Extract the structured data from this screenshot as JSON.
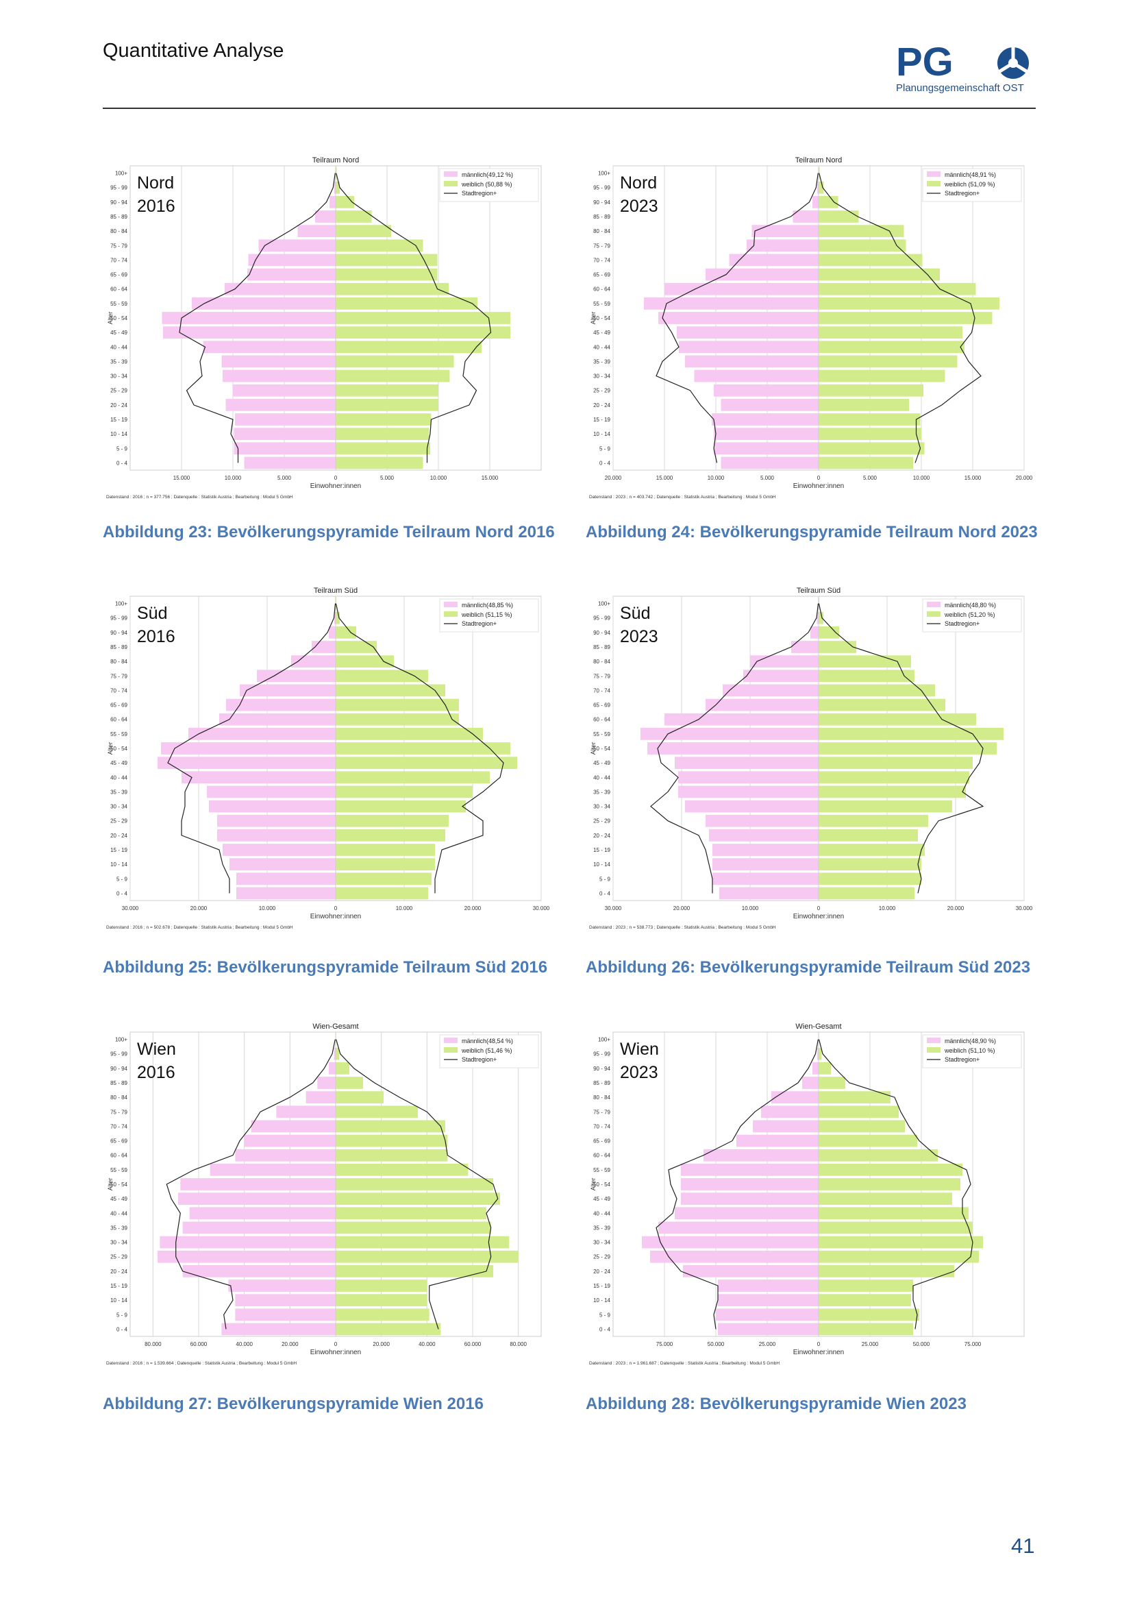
{
  "header": {
    "title": "Quantitative Analyse",
    "logo_text": "PG",
    "logo_subtitle": "Planungsgemeinschaft OST"
  },
  "page_number": "41",
  "shared": {
    "age_groups": [
      "0 - 4",
      "5 - 9",
      "10 - 14",
      "15 - 19",
      "20 - 24",
      "25 - 29",
      "30 - 34",
      "35 - 39",
      "40 - 44",
      "45 - 49",
      "50 - 54",
      "55 - 59",
      "60 - 64",
      "65 - 69",
      "70 - 74",
      "75 - 79",
      "80 - 84",
      "85 - 89",
      "90 - 94",
      "95 - 99",
      "100+"
    ],
    "ylabel": "Alter",
    "xlabel": "Einwohner:innen",
    "colors": {
      "male": "#f7c8f2",
      "female": "#d2ec8c",
      "line": "#222222"
    }
  },
  "chart_data": [
    {
      "type": "bar",
      "id": "nord-2016",
      "title": "Teilraum Nord",
      "overlay": [
        "Nord",
        "2016"
      ],
      "legend": [
        "männlich(49,12 %)",
        "weiblich (50,88 %)",
        "Stadtregion+"
      ],
      "male": [
        8900,
        9900,
        9900,
        9800,
        10700,
        10000,
        11000,
        11100,
        12900,
        16800,
        16900,
        14000,
        10800,
        8600,
        8500,
        7500,
        3700,
        2000,
        600,
        150,
        40
      ],
      "female": [
        8500,
        9200,
        9100,
        9300,
        10000,
        10000,
        11100,
        11500,
        14200,
        17000,
        17000,
        13800,
        11000,
        9900,
        9900,
        8500,
        5400,
        3500,
        1800,
        400,
        100
      ],
      "line_male": [
        9500,
        9500,
        10200,
        10000,
        13800,
        14500,
        13000,
        13200,
        12700,
        15200,
        15000,
        12800,
        9800,
        8400,
        7800,
        6900,
        4500,
        2300,
        900,
        250,
        50
      ],
      "line_female": [
        8900,
        8900,
        9200,
        9300,
        13000,
        13700,
        12400,
        12600,
        13700,
        15100,
        14900,
        13300,
        9900,
        9300,
        8600,
        7800,
        5600,
        3600,
        1600,
        400,
        50
      ],
      "xticks": [
        -15000,
        -10000,
        -5000,
        0,
        5000,
        10000,
        15000
      ],
      "xtick_labels": [
        "15.000",
        "10.000",
        "5.000",
        "0",
        "5.000",
        "10.000",
        "15.000"
      ],
      "xlim": [
        -20000,
        20000
      ],
      "footnote": "Datenstand : 2016 ; n = 377.756 ; Datenquelle : Statistik Austria ; Bearbeitung : Modul 5 GmbH",
      "caption": "Abbildung 23: Bevölkerungspyramide Teilraum Nord 2016"
    },
    {
      "type": "bar",
      "id": "nord-2023",
      "title": "Teilraum Nord",
      "overlay": [
        "Nord",
        "2023"
      ],
      "legend": [
        "männlich(48,91 %)",
        "weiblich (51,09 %)",
        "Stadtregion+"
      ],
      "male": [
        9500,
        10200,
        10200,
        10400,
        9500,
        10200,
        12100,
        13000,
        13600,
        13800,
        15600,
        17000,
        15000,
        11000,
        8700,
        7000,
        6500,
        2500,
        600,
        150,
        40
      ],
      "female": [
        9200,
        10300,
        10000,
        9900,
        8800,
        10200,
        12300,
        13500,
        14200,
        14000,
        16900,
        17600,
        15300,
        11800,
        10100,
        8500,
        8300,
        3900,
        1900,
        500,
        100
      ],
      "line_male": [
        9900,
        10200,
        10000,
        10200,
        11500,
        12500,
        15800,
        15200,
        13600,
        14300,
        15200,
        14800,
        12000,
        9000,
        7700,
        6300,
        6200,
        2700,
        900,
        250,
        50
      ],
      "line_female": [
        9400,
        9900,
        9500,
        9500,
        12000,
        13800,
        15800,
        14600,
        13800,
        14900,
        15200,
        14800,
        11800,
        10600,
        9100,
        7600,
        6900,
        3800,
        1500,
        400,
        50
      ],
      "xticks": [
        -20000,
        -15000,
        -10000,
        -5000,
        0,
        5000,
        10000,
        15000,
        20000
      ],
      "xtick_labels": [
        "20.000",
        "15.000",
        "10.000",
        "5.000",
        "0",
        "5.000",
        "10.000",
        "15.000",
        "20.000"
      ],
      "xlim": [
        -20000,
        20000
      ],
      "footnote": "Datenstand : 2023 ; n = 403.742 ; Datenquelle : Statistik Austria ; Bearbeitung : Modul 5 GmbH",
      "caption": "Abbildung 24: Bevölkerungspyramide Teilraum Nord 2023"
    },
    {
      "type": "bar",
      "id": "sued-2016",
      "title": "Teilraum Süd",
      "overlay": [
        "Süd",
        "2016"
      ],
      "legend": [
        "männlich(48,85 %)",
        "weiblich (51,15 %)",
        "Stadtregion+"
      ],
      "male": [
        14500,
        14500,
        15500,
        16500,
        17300,
        17300,
        18500,
        18800,
        22500,
        26000,
        25500,
        21500,
        17000,
        16000,
        14000,
        11500,
        6500,
        3500,
        1000,
        200,
        50
      ],
      "female": [
        13500,
        14000,
        14500,
        14500,
        16000,
        16500,
        19000,
        20000,
        22500,
        26500,
        25500,
        21500,
        18000,
        18000,
        16000,
        13500,
        8500,
        6000,
        3000,
        600,
        100
      ],
      "line_male": [
        15500,
        15500,
        16500,
        17000,
        22500,
        22500,
        22000,
        22000,
        21000,
        24500,
        23500,
        20000,
        15500,
        14000,
        13000,
        9000,
        5500,
        3000,
        1200,
        250,
        50
      ],
      "line_female": [
        14500,
        14500,
        15000,
        15500,
        21500,
        21500,
        18500,
        21500,
        24000,
        24500,
        22500,
        20000,
        17000,
        16000,
        14500,
        11500,
        7000,
        5500,
        2200,
        500,
        50
      ],
      "xticks": [
        -30000,
        -20000,
        -10000,
        0,
        10000,
        20000,
        30000
      ],
      "xtick_labels": [
        "30.000",
        "20.000",
        "10.000",
        "0",
        "10.000",
        "20.000",
        "30.000"
      ],
      "xlim": [
        -30000,
        30000
      ],
      "footnote": "Datenstand : 2016 ; n = 502.678 ; Datenquelle : Statistik Austria ; Bearbeitung : Modul 5 GmbH",
      "caption": "Abbildung 25: Bevölkerungspyramide Teilraum Süd 2016"
    },
    {
      "type": "bar",
      "id": "sued-2023",
      "title": "Teilraum Süd",
      "overlay": [
        "Süd",
        "2023"
      ],
      "legend": [
        "männlich(48,80 %)",
        "weiblich (51,20 %)",
        "Stadtregion+"
      ],
      "male": [
        14500,
        15500,
        15500,
        15500,
        16000,
        16500,
        19500,
        20500,
        20500,
        21000,
        25000,
        26000,
        22500,
        16500,
        14000,
        11000,
        10000,
        4000,
        1200,
        250,
        60
      ],
      "female": [
        14000,
        15000,
        15000,
        15500,
        14500,
        16000,
        19500,
        21500,
        22000,
        22500,
        26000,
        27000,
        23000,
        18500,
        17000,
        14000,
        13500,
        5500,
        3000,
        700,
        100
      ],
      "line_male": [
        15500,
        15500,
        16000,
        16500,
        17500,
        22000,
        24500,
        22000,
        20500,
        23000,
        23500,
        22000,
        17500,
        15000,
        13000,
        10500,
        9000,
        4000,
        1500,
        300,
        50
      ],
      "line_female": [
        14500,
        15000,
        14500,
        15000,
        16000,
        17500,
        24000,
        21000,
        22000,
        23500,
        24000,
        22500,
        18000,
        16500,
        15000,
        12500,
        11500,
        5000,
        2500,
        500,
        50
      ],
      "xticks": [
        -30000,
        -20000,
        -10000,
        0,
        10000,
        20000,
        30000
      ],
      "xtick_labels": [
        "30.000",
        "20.000",
        "10.000",
        "0",
        "10.000",
        "20.000",
        "30.000"
      ],
      "xlim": [
        -30000,
        30000
      ],
      "footnote": "Datenstand : 2023 ; n = 538.773 ; Datenquelle : Statistik Austria ; Bearbeitung : Modul 5 GmbH",
      "caption": "Abbildung 26: Bevölkerungspyramide Teilraum Süd 2023"
    },
    {
      "type": "bar",
      "id": "wien-2016",
      "title": "Wien-Gesamt",
      "overlay": [
        "Wien",
        "2016"
      ],
      "legend": [
        "männlich(48,54 %)",
        "weiblich (51,46 %)",
        "Stadtregion+"
      ],
      "male": [
        50000,
        44000,
        44000,
        47000,
        67000,
        78000,
        77000,
        67000,
        64000,
        69000,
        68000,
        55000,
        44000,
        40000,
        37000,
        26000,
        13000,
        8000,
        3000,
        700,
        100
      ],
      "female": [
        46000,
        41000,
        40000,
        40000,
        69000,
        80000,
        76000,
        68000,
        66000,
        72000,
        69000,
        58000,
        49000,
        49000,
        48000,
        36000,
        21000,
        12000,
        6000,
        1500,
        200
      ],
      "line_male": [
        48000,
        49000,
        45000,
        46000,
        67000,
        70000,
        70000,
        69000,
        68000,
        72000,
        74000,
        62000,
        45000,
        42000,
        37000,
        33000,
        20000,
        10000,
        5000,
        1500,
        200
      ],
      "line_female": [
        45000,
        43000,
        41000,
        41000,
        66000,
        68000,
        67000,
        68000,
        66000,
        71000,
        69000,
        59000,
        49000,
        48000,
        46000,
        40000,
        28000,
        17000,
        8000,
        2000,
        200
      ],
      "xticks": [
        -80000,
        -60000,
        -40000,
        -20000,
        0,
        20000,
        40000,
        60000,
        80000
      ],
      "xtick_labels": [
        "80.000",
        "60.000",
        "40.000",
        "20.000",
        "0",
        "20.000",
        "40.000",
        "60.000",
        "80.000"
      ],
      "xlim": [
        -90000,
        90000
      ],
      "footnote": "Datenstand : 2016 ; n = 1.539.664 ; Datenquelle : Statistik Austria ; Bearbeitung : Modul 5 GmbH",
      "caption": "Abbildung 27: Bevölkerungspyramide Wien 2016"
    },
    {
      "type": "bar",
      "id": "wien-2023",
      "title": "Wien-Gesamt",
      "overlay": [
        "Wien",
        "2023"
      ],
      "legend": [
        "männlich(48,90 %)",
        "weiblich (51,10 %)",
        "Stadtregion+"
      ],
      "male": [
        49000,
        50000,
        49000,
        49000,
        66000,
        82000,
        86000,
        78000,
        70000,
        67000,
        67000,
        67000,
        56000,
        40000,
        32000,
        28000,
        23000,
        8000,
        3000,
        700,
        100
      ],
      "female": [
        46000,
        49000,
        45000,
        46000,
        66000,
        78000,
        80000,
        75000,
        73000,
        65000,
        69000,
        70000,
        58000,
        48000,
        42000,
        39000,
        35000,
        13000,
        6000,
        1500,
        200
      ],
      "line_male": [
        50000,
        51000,
        49000,
        49000,
        67000,
        73000,
        77000,
        79000,
        71000,
        69000,
        72000,
        73000,
        56000,
        42000,
        38000,
        31000,
        21000,
        10000,
        5000,
        1500,
        200
      ],
      "line_female": [
        47000,
        48000,
        46000,
        46000,
        66000,
        74000,
        75000,
        73000,
        70000,
        70000,
        74000,
        72000,
        57000,
        49000,
        44000,
        40000,
        37000,
        15000,
        8000,
        2000,
        200
      ],
      "xticks": [
        -75000,
        -50000,
        -25000,
        0,
        25000,
        50000,
        75000
      ],
      "xtick_labels": [
        "75.000",
        "50.000",
        "25.000",
        "0",
        "25.000",
        "50.000",
        "75.000"
      ],
      "xlim": [
        -100000,
        100000
      ],
      "footnote": "Datenstand : 2023 ; n = 1.961.687 ; Datenquelle : Statistik Austria ; Bearbeitung : Modul 5 GmbH",
      "caption": "Abbildung 28: Bevölkerungspyramide Wien 2023"
    }
  ]
}
